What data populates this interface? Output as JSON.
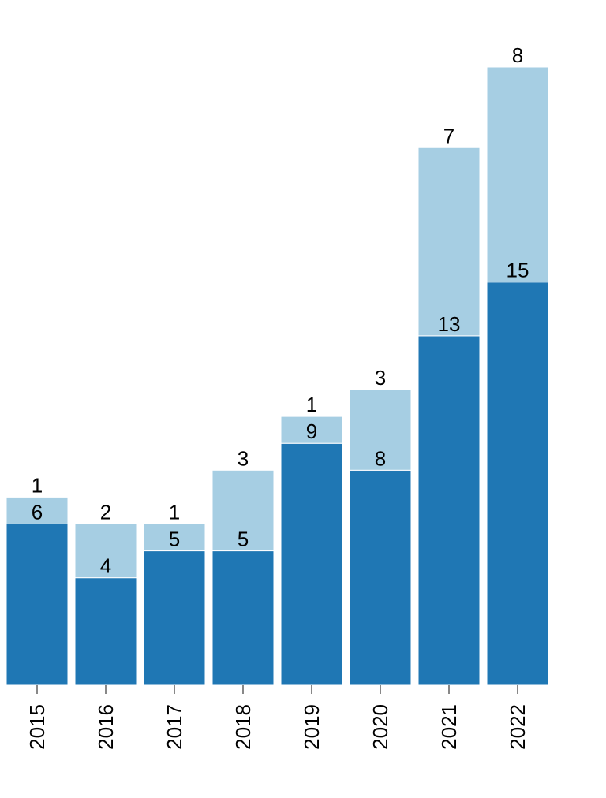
{
  "chart_data": {
    "type": "stacked-bar",
    "categories": [
      "2015",
      "2016",
      "2017",
      "2018",
      "2019",
      "2020",
      "2021",
      "2022"
    ],
    "series": [
      {
        "color": "#1f77b4",
        "values": [
          6,
          4,
          5,
          5,
          9,
          8,
          13,
          15
        ]
      },
      {
        "color": "#a6cee3",
        "values": [
          1,
          2,
          1,
          3,
          1,
          3,
          7,
          8
        ]
      }
    ]
  }
}
